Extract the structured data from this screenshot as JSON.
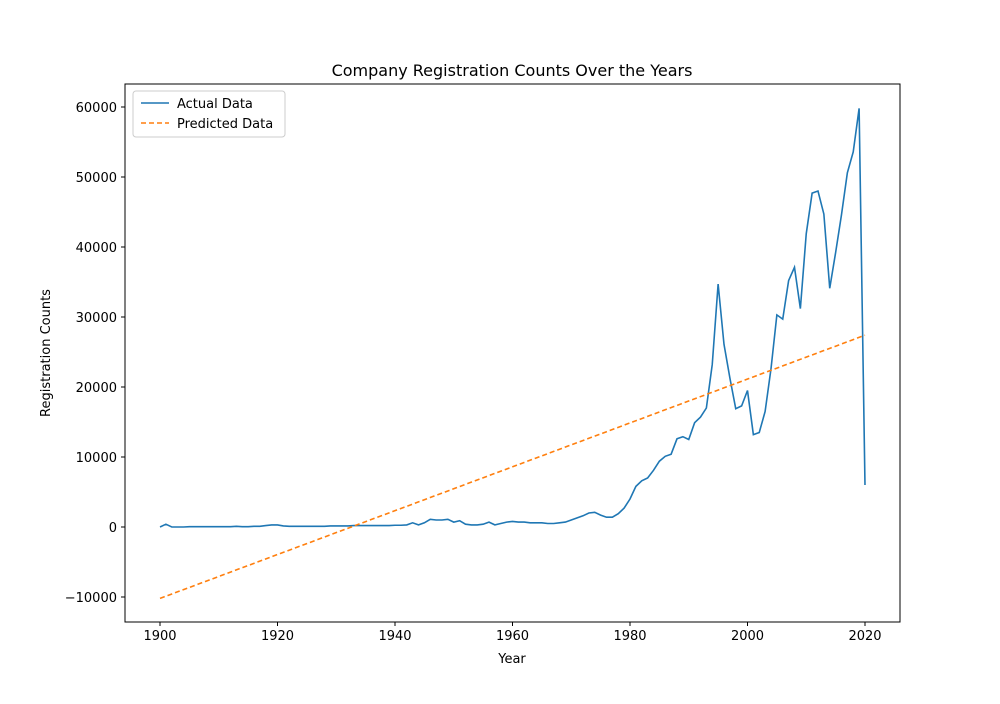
{
  "chart_data": {
    "type": "line",
    "title": "Company Registration Counts Over the Years",
    "x_label": "Year",
    "y_label": "Registration Counts",
    "xlim": [
      1894.04,
      2025.96
    ],
    "ylim": [
      -13571,
      63286
    ],
    "xticks": [
      1900,
      1920,
      1940,
      1960,
      1980,
      2000,
      2020
    ],
    "yticks": [
      {
        "value": -10000,
        "label": "−10000"
      },
      0,
      10000,
      20000,
      30000,
      40000,
      50000,
      60000
    ],
    "legend": "upper left",
    "series": [
      {
        "name": "Actual Data",
        "color": "#1f77b4",
        "dash": false,
        "x": [
          1900,
          1901,
          1902,
          1903,
          1904,
          1905,
          1906,
          1907,
          1908,
          1909,
          1910,
          1911,
          1912,
          1913,
          1914,
          1915,
          1916,
          1917,
          1918,
          1919,
          1920,
          1921,
          1922,
          1923,
          1924,
          1925,
          1926,
          1927,
          1928,
          1929,
          1930,
          1931,
          1932,
          1933,
          1934,
          1935,
          1936,
          1937,
          1938,
          1939,
          1940,
          1941,
          1942,
          1943,
          1944,
          1945,
          1946,
          1947,
          1948,
          1949,
          1950,
          1951,
          1952,
          1953,
          1954,
          1955,
          1956,
          1957,
          1958,
          1959,
          1960,
          1961,
          1962,
          1963,
          1964,
          1965,
          1966,
          1967,
          1968,
          1969,
          1970,
          1971,
          1972,
          1973,
          1974,
          1975,
          1976,
          1977,
          1978,
          1979,
          1980,
          1981,
          1982,
          1983,
          1984,
          1985,
          1986,
          1987,
          1988,
          1989,
          1990,
          1991,
          1992,
          1993,
          1994,
          1995,
          1996,
          1997,
          1998,
          1999,
          2000,
          2001,
          2002,
          2003,
          2004,
          2005,
          2006,
          2007,
          2008,
          2009,
          2010,
          2011,
          2012,
          2013,
          2014,
          2015,
          2016,
          2017,
          2018,
          2019,
          2020
        ],
        "values": [
          0,
          400,
          0,
          0,
          0,
          50,
          50,
          50,
          50,
          50,
          50,
          50,
          50,
          100,
          50,
          50,
          100,
          100,
          200,
          300,
          300,
          150,
          100,
          100,
          100,
          100,
          100,
          100,
          100,
          150,
          150,
          150,
          150,
          200,
          200,
          200,
          200,
          200,
          200,
          200,
          250,
          250,
          300,
          600,
          300,
          600,
          1100,
          1000,
          1000,
          1100,
          700,
          900,
          400,
          300,
          300,
          400,
          700,
          300,
          500,
          700,
          800,
          700,
          700,
          600,
          600,
          600,
          500,
          500,
          600,
          700,
          1000,
          1300,
          1600,
          2000,
          2100,
          1700,
          1400,
          1400,
          1900,
          2700,
          4000,
          5800,
          6600,
          7000,
          8100,
          9400,
          10100,
          10400,
          12600,
          12900,
          12500,
          14900,
          15700,
          17000,
          23200,
          34700,
          26100,
          21300,
          16900,
          17300,
          19500,
          13200,
          13500,
          16500,
          22600,
          30300,
          29700,
          35200,
          37100,
          31200,
          41900,
          47700,
          48000,
          44700,
          34100,
          39200,
          44600,
          50600,
          53600,
          59800,
          6000
        ]
      },
      {
        "name": "Predicted Data",
        "color": "#ff7f0e",
        "dash": true,
        "x": [
          1900,
          2020
        ],
        "values": [
          -10200,
          27400
        ]
      }
    ]
  }
}
